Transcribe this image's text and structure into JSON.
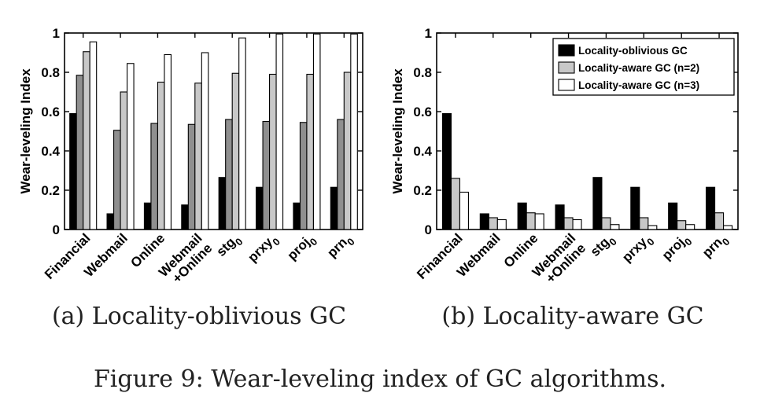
{
  "figure_caption": "Figure 9: Wear-leveling index of GC algorithms.",
  "colors": {
    "oblivious": "#000000",
    "aware2": "#8f8f8f",
    "aware3": "#ffffff",
    "aware2_b": "#c8c8c8"
  },
  "chart_data": [
    {
      "type": "bar",
      "caption": "(a) Locality-oblivious GC",
      "ylabel": "Wear-leveling Index",
      "xlabel": "",
      "ylim": [
        0,
        1
      ],
      "yticks": [
        "0",
        "0.2",
        "0.4",
        "0.6",
        "0.8",
        "1"
      ],
      "categories": [
        {
          "base": "Financial",
          "sub": ""
        },
        {
          "base": "Webmail",
          "sub": ""
        },
        {
          "base": "Online",
          "sub": ""
        },
        {
          "base": "Webmail",
          "line2": "+Online",
          "sub": ""
        },
        {
          "base": "stg",
          "sub": "0"
        },
        {
          "base": "prxy",
          "sub": "0"
        },
        {
          "base": "proj",
          "sub": "0"
        },
        {
          "base": "prn",
          "sub": "0"
        }
      ],
      "series": [
        {
          "values": [
            0.59,
            0.08,
            0.135,
            0.125,
            0.265,
            0.215,
            0.135,
            0.215
          ]
        },
        {
          "values": [
            0.785,
            0.505,
            0.54,
            0.535,
            0.56,
            0.55,
            0.545,
            0.56
          ]
        },
        {
          "values": [
            0.905,
            0.7,
            0.75,
            0.745,
            0.795,
            0.79,
            0.79,
            0.8
          ]
        },
        {
          "values": [
            0.955,
            0.845,
            0.89,
            0.9,
            0.975,
            0.995,
            0.995,
            0.995
          ]
        }
      ]
    },
    {
      "type": "bar",
      "caption": "(b) Locality-aware GC",
      "ylabel": "Wear-leveling Index",
      "xlabel": "",
      "ylim": [
        0,
        1
      ],
      "yticks": [
        "0",
        "0.2",
        "0.4",
        "0.6",
        "0.8",
        "1"
      ],
      "legend_position": "top-right",
      "categories": [
        {
          "base": "Financial",
          "sub": ""
        },
        {
          "base": "Webmail",
          "sub": ""
        },
        {
          "base": "Online",
          "sub": ""
        },
        {
          "base": "Webmail",
          "line2": "+Online",
          "sub": ""
        },
        {
          "base": "stg",
          "sub": "0"
        },
        {
          "base": "prxy",
          "sub": "0"
        },
        {
          "base": "proj",
          "sub": "0"
        },
        {
          "base": "prn",
          "sub": "0"
        }
      ],
      "series": [
        {
          "name": "Locality-oblivious GC",
          "values": [
            0.59,
            0.08,
            0.135,
            0.125,
            0.265,
            0.215,
            0.135,
            0.215
          ]
        },
        {
          "name": "Locality-aware GC (n=2)",
          "values": [
            0.26,
            0.06,
            0.085,
            0.06,
            0.06,
            0.06,
            0.045,
            0.085
          ]
        },
        {
          "name": "Locality-aware GC (n=3)",
          "values": [
            0.19,
            0.05,
            0.08,
            0.05,
            0.025,
            0.02,
            0.025,
            0.02
          ]
        }
      ]
    }
  ]
}
